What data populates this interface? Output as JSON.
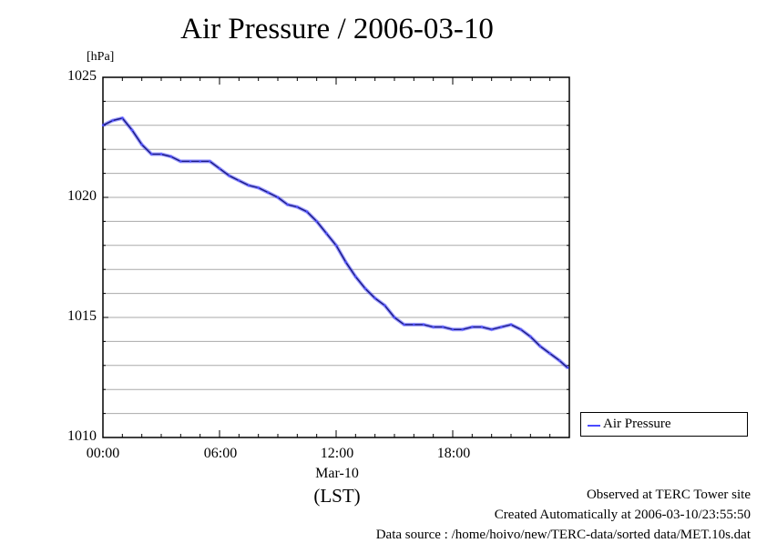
{
  "chart_data": {
    "type": "line",
    "title": "Air Pressure / 2006-03-10",
    "ylabel": "[hPa]",
    "xlabel": "(LST)",
    "x_date_label": "Mar-10",
    "xlim": [
      "00:00",
      "24:00"
    ],
    "ylim": [
      1010,
      1025
    ],
    "yticks": [
      "1025",
      "1020",
      "1015",
      "1010"
    ],
    "xticks": [
      "00:00",
      "06:00",
      "12:00",
      "18:00"
    ],
    "grid": true,
    "legend_position": "bottom-right, outside plot",
    "series": [
      {
        "name": "Air Pressure",
        "color": "#4a4aff",
        "x": [
          "00:00",
          "00:30",
          "01:00",
          "01:30",
          "02:00",
          "02:30",
          "03:00",
          "03:30",
          "04:00",
          "04:30",
          "05:00",
          "05:30",
          "06:00",
          "06:30",
          "07:00",
          "07:30",
          "08:00",
          "08:30",
          "09:00",
          "09:30",
          "10:00",
          "10:30",
          "11:00",
          "11:30",
          "12:00",
          "12:30",
          "13:00",
          "13:30",
          "14:00",
          "14:30",
          "15:00",
          "15:30",
          "16:00",
          "16:30",
          "17:00",
          "17:30",
          "18:00",
          "18:30",
          "19:00",
          "19:30",
          "20:00",
          "20:30",
          "21:00",
          "21:30",
          "22:00",
          "22:30",
          "23:00",
          "23:30",
          "23:55"
        ],
        "values": [
          1023.0,
          1023.2,
          1023.3,
          1022.8,
          1022.2,
          1021.8,
          1021.8,
          1021.7,
          1021.5,
          1021.5,
          1021.5,
          1021.5,
          1021.2,
          1020.9,
          1020.7,
          1020.5,
          1020.4,
          1020.2,
          1020.0,
          1019.7,
          1019.6,
          1019.4,
          1019.0,
          1018.5,
          1018.0,
          1017.3,
          1016.7,
          1016.2,
          1015.8,
          1015.5,
          1015.0,
          1014.7,
          1014.7,
          1014.7,
          1014.6,
          1014.6,
          1014.5,
          1014.5,
          1014.6,
          1014.6,
          1014.5,
          1014.6,
          1014.7,
          1014.5,
          1014.2,
          1013.8,
          1013.5,
          1013.2,
          1012.9
        ]
      }
    ]
  },
  "legend": {
    "label": "Air Pressure"
  },
  "footer": {
    "line1": "Observed at TERC Tower site",
    "line2": "Created Automatically at 2006-03-10/23:55:50",
    "line3": "Data source : /home/hoivo/new/TERC-data/sorted  data/MET.10s.dat"
  }
}
